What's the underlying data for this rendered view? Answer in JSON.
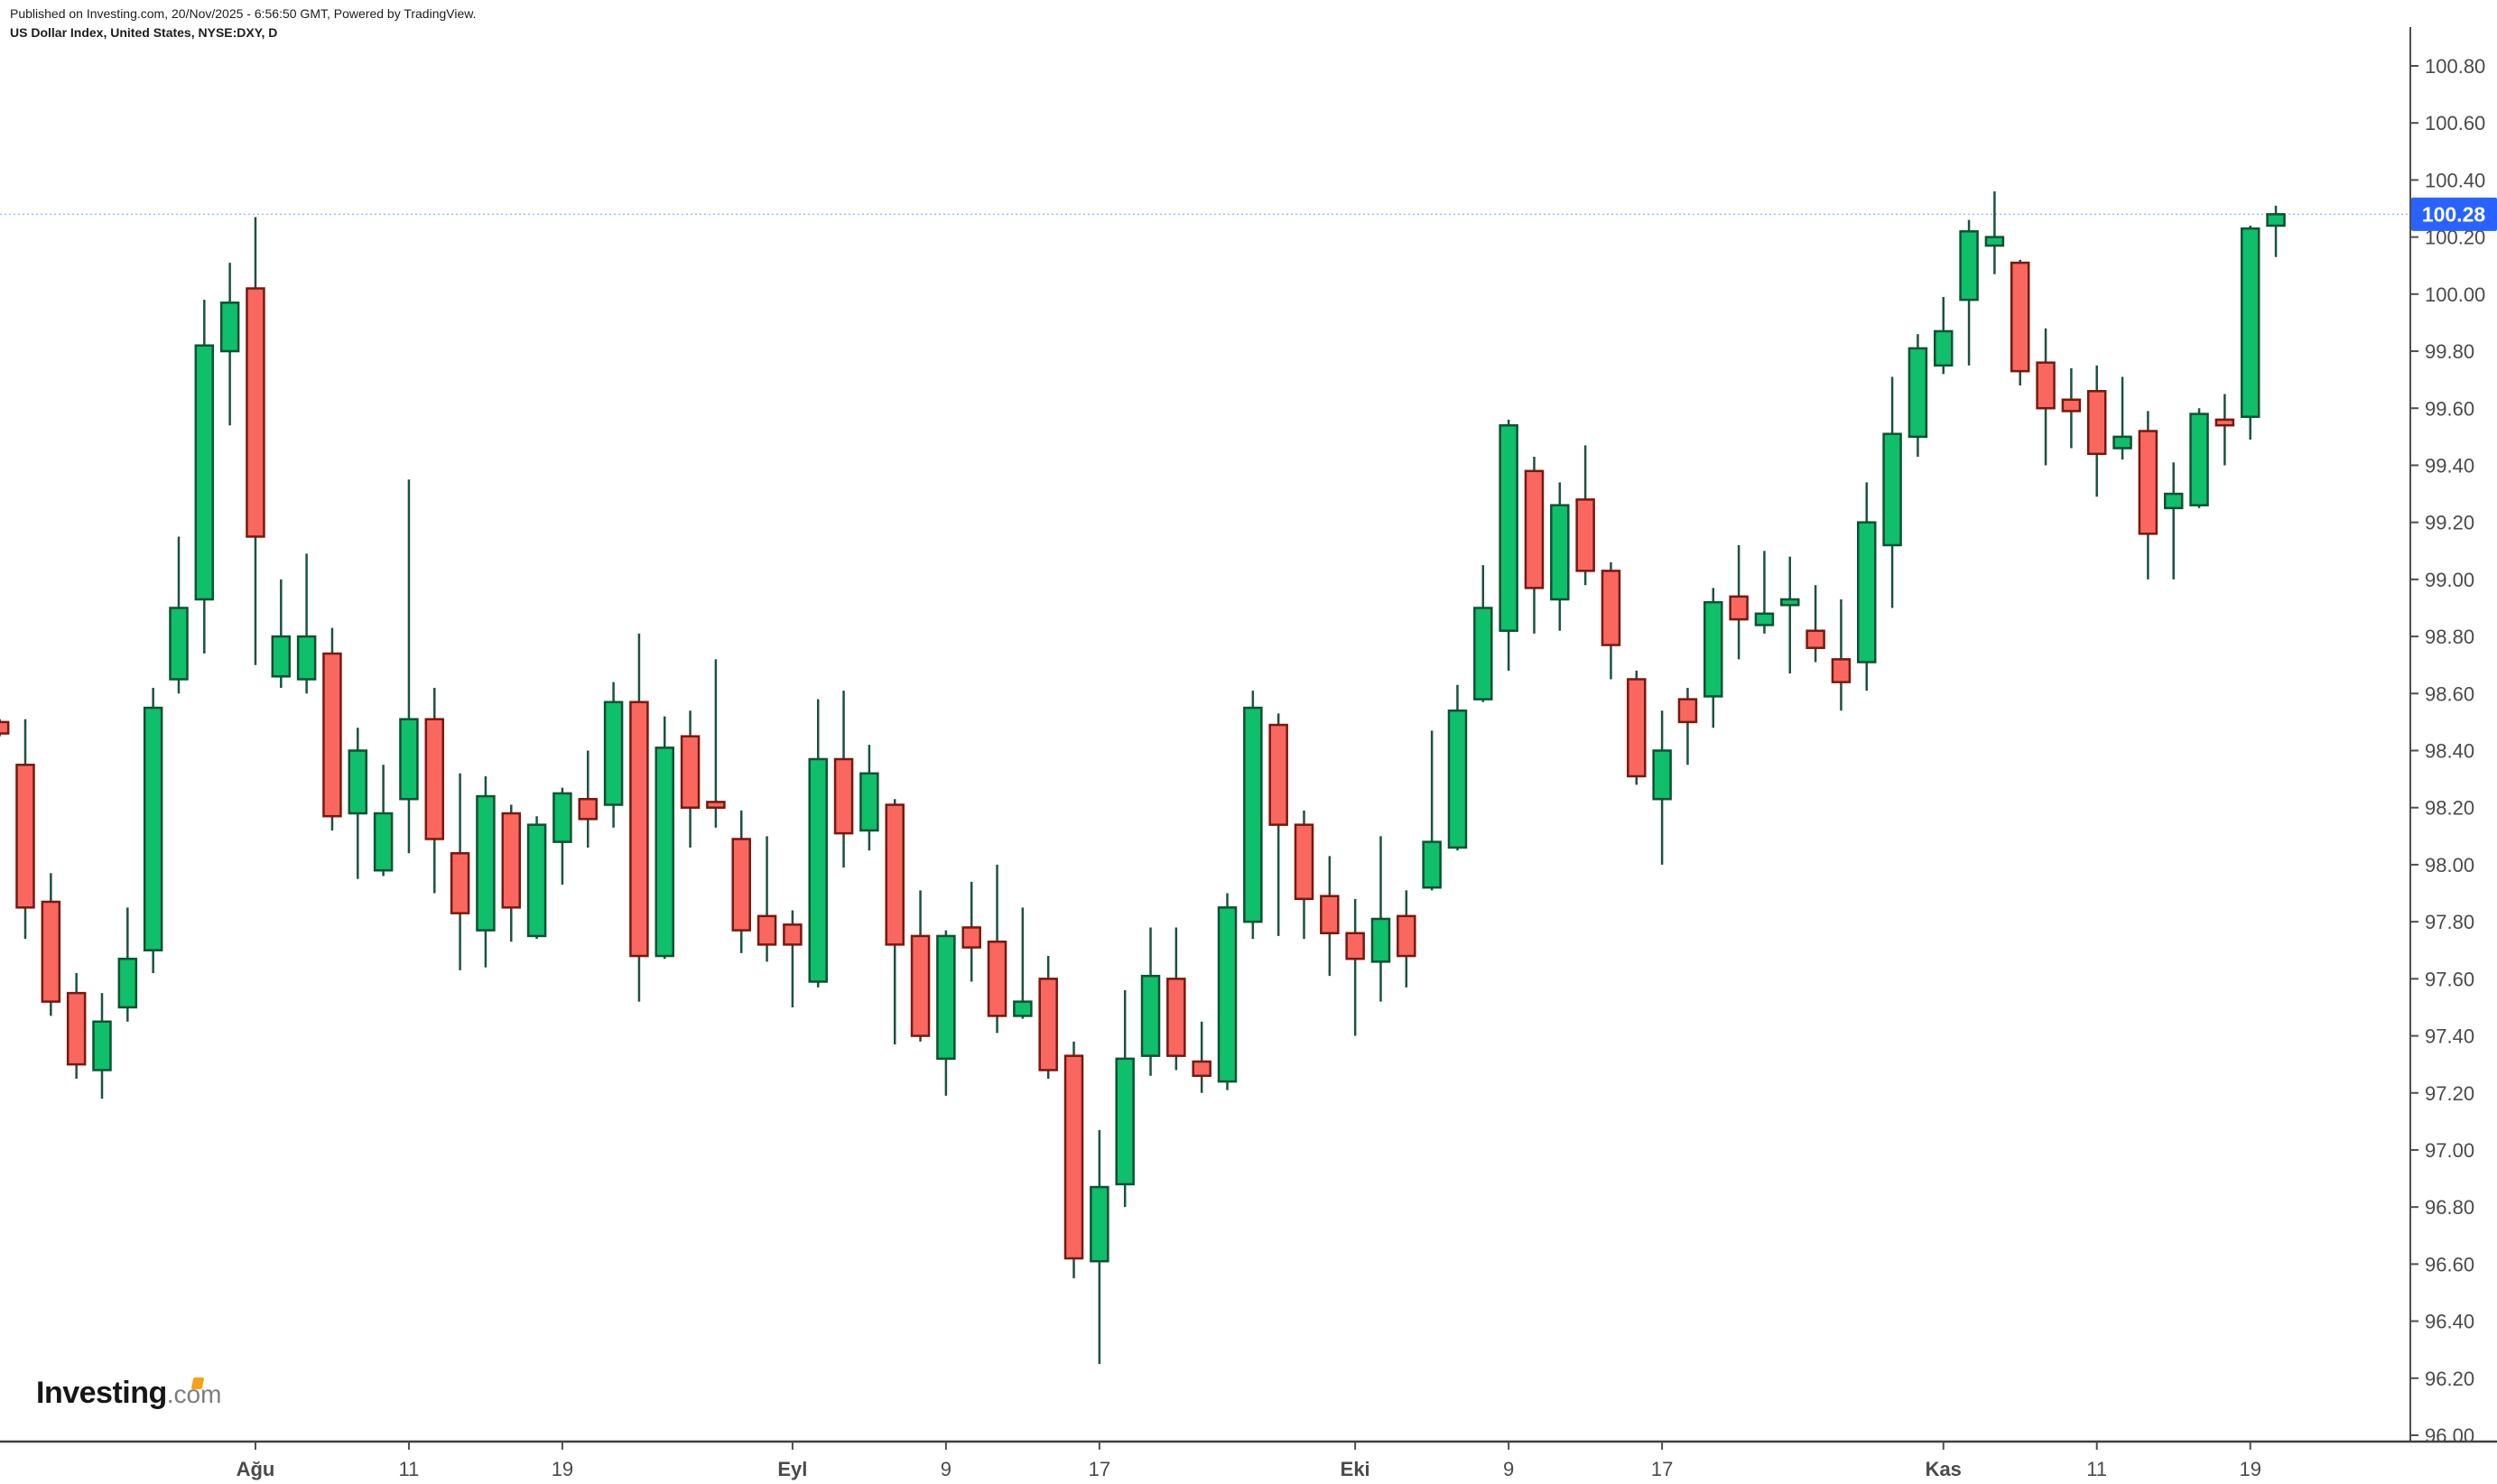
{
  "header": {
    "published_line": "Published on Investing.com, 20/Nov/2025 - 6:56:50 GMT, Powered by TradingView.",
    "instrument_line": "US Dollar Index, United States, NYSE:DXY, D"
  },
  "watermark": {
    "brand": "Investing",
    "suffix": ".com"
  },
  "price_label": {
    "value": "100.28"
  },
  "colors": {
    "up_fill": "#0fbf69",
    "up_border": "#0d5233",
    "down_fill": "#fa675f",
    "down_border": "#76190f",
    "wick": "#1d5140",
    "axis_line": "#4f4f4f",
    "axis_text": "#4a4a4a",
    "label_bg": "#2962ff",
    "label_text": "#ffffff",
    "dotted_line": "#9fb8f9",
    "logo_accent": "#f7a11a"
  },
  "chart_data": {
    "type": "candlestick",
    "title": "US Dollar Index, United States, NYSE:DXY, D",
    "ylim": [
      96.0,
      100.8
    ],
    "grid": false,
    "last_price": 100.28,
    "y_ticks": [
      "100.80",
      "100.60",
      "100.40",
      "100.20",
      "100.00",
      "99.80",
      "99.60",
      "99.40",
      "99.20",
      "99.00",
      "98.80",
      "98.60",
      "98.40",
      "98.20",
      "98.00",
      "97.80",
      "97.60",
      "97.40",
      "97.20",
      "97.00",
      "96.80",
      "96.60",
      "96.40",
      "96.20",
      "96.00"
    ],
    "x_ticks": [
      {
        "label": "Ağu",
        "index": 10,
        "bold": true
      },
      {
        "label": "11",
        "index": 16,
        "bold": false
      },
      {
        "label": "19",
        "index": 22,
        "bold": false
      },
      {
        "label": "Eyl",
        "index": 31,
        "bold": true
      },
      {
        "label": "9",
        "index": 37,
        "bold": false
      },
      {
        "label": "17",
        "index": 43,
        "bold": false
      },
      {
        "label": "Eki",
        "index": 53,
        "bold": true
      },
      {
        "label": "9",
        "index": 59,
        "bold": false
      },
      {
        "label": "17",
        "index": 65,
        "bold": false
      },
      {
        "label": "Kas",
        "index": 76,
        "bold": true
      },
      {
        "label": "11",
        "index": 82,
        "bold": false
      },
      {
        "label": "19",
        "index": 88,
        "bold": false
      }
    ],
    "plot": {
      "y_top": 73,
      "y_bottom": 1590,
      "x_start": -0.33,
      "x_step": 28.33,
      "axis_x": 2670,
      "axis_top_y": 30,
      "axis_bottom_y": 1597,
      "candle_width": 19,
      "border_w": 2.5,
      "wick_w": 2.5
    },
    "series": [
      {
        "date": "18 Jul",
        "o": 98.5,
        "h": 98.51,
        "l": 98.45,
        "c": 98.46
      },
      {
        "date": "21 Jul",
        "o": 98.35,
        "h": 98.51,
        "l": 97.74,
        "c": 97.85
      },
      {
        "date": "22 Jul",
        "o": 97.87,
        "h": 97.97,
        "l": 97.47,
        "c": 97.52
      },
      {
        "date": "23 Jul",
        "o": 97.55,
        "h": 97.62,
        "l": 97.25,
        "c": 97.3
      },
      {
        "date": "24 Jul",
        "o": 97.28,
        "h": 97.55,
        "l": 97.18,
        "c": 97.45
      },
      {
        "date": "25 Jul",
        "o": 97.5,
        "h": 97.85,
        "l": 97.45,
        "c": 97.67
      },
      {
        "date": "28 Jul",
        "o": 97.7,
        "h": 98.62,
        "l": 97.62,
        "c": 98.55
      },
      {
        "date": "29 Jul",
        "o": 98.65,
        "h": 99.15,
        "l": 98.6,
        "c": 98.9
      },
      {
        "date": "30 Jul",
        "o": 98.93,
        "h": 99.98,
        "l": 98.74,
        "c": 99.82
      },
      {
        "date": "31 Jul",
        "o": 99.8,
        "h": 100.11,
        "l": 99.54,
        "c": 99.97
      },
      {
        "date": "1 Ağu",
        "o": 100.02,
        "h": 100.27,
        "l": 98.7,
        "c": 99.15
      },
      {
        "date": "4 Ağu",
        "o": 98.66,
        "h": 99.0,
        "l": 98.62,
        "c": 98.8
      },
      {
        "date": "5 Ağu",
        "o": 98.65,
        "h": 99.09,
        "l": 98.6,
        "c": 98.8
      },
      {
        "date": "6 Ağu",
        "o": 98.74,
        "h": 98.83,
        "l": 98.12,
        "c": 98.17
      },
      {
        "date": "7 Ağu",
        "o": 98.18,
        "h": 98.48,
        "l": 97.95,
        "c": 98.4
      },
      {
        "date": "8 Ağu",
        "o": 97.98,
        "h": 98.35,
        "l": 97.96,
        "c": 98.18
      },
      {
        "date": "11 Ağu",
        "o": 98.23,
        "h": 99.35,
        "l": 98.04,
        "c": 98.51
      },
      {
        "date": "12 Ağu",
        "o": 98.51,
        "h": 98.62,
        "l": 97.9,
        "c": 98.09
      },
      {
        "date": "13 Ağu",
        "o": 98.04,
        "h": 98.32,
        "l": 97.63,
        "c": 97.83
      },
      {
        "date": "14 Ağu",
        "o": 97.77,
        "h": 98.31,
        "l": 97.64,
        "c": 98.24
      },
      {
        "date": "15 Ağu",
        "o": 98.18,
        "h": 98.21,
        "l": 97.73,
        "c": 97.85
      },
      {
        "date": "18 Ağu",
        "o": 97.75,
        "h": 98.17,
        "l": 97.74,
        "c": 98.14
      },
      {
        "date": "19 Ağu",
        "o": 98.08,
        "h": 98.27,
        "l": 97.93,
        "c": 98.25
      },
      {
        "date": "20 Ağu",
        "o": 98.23,
        "h": 98.4,
        "l": 98.06,
        "c": 98.16
      },
      {
        "date": "21 Ağu",
        "o": 98.21,
        "h": 98.64,
        "l": 98.13,
        "c": 98.57
      },
      {
        "date": "22 Ağu",
        "o": 98.57,
        "h": 98.81,
        "l": 97.52,
        "c": 97.68
      },
      {
        "date": "25 Ağu",
        "o": 97.68,
        "h": 98.52,
        "l": 97.67,
        "c": 98.41
      },
      {
        "date": "26 Ağu",
        "o": 98.45,
        "h": 98.54,
        "l": 98.06,
        "c": 98.2
      },
      {
        "date": "27 Ağu",
        "o": 98.22,
        "h": 98.72,
        "l": 98.13,
        "c": 98.2
      },
      {
        "date": "28 Ağu",
        "o": 98.09,
        "h": 98.19,
        "l": 97.69,
        "c": 97.77
      },
      {
        "date": "29 Ağu",
        "o": 97.82,
        "h": 98.1,
        "l": 97.66,
        "c": 97.72
      },
      {
        "date": "1 Eyl",
        "o": 97.79,
        "h": 97.84,
        "l": 97.5,
        "c": 97.72
      },
      {
        "date": "2 Eyl",
        "o": 97.59,
        "h": 98.58,
        "l": 97.57,
        "c": 98.37
      },
      {
        "date": "3 Eyl",
        "o": 98.37,
        "h": 98.61,
        "l": 97.99,
        "c": 98.11
      },
      {
        "date": "4 Eyl",
        "o": 98.12,
        "h": 98.42,
        "l": 98.05,
        "c": 98.32
      },
      {
        "date": "5 Eyl",
        "o": 98.21,
        "h": 98.23,
        "l": 97.37,
        "c": 97.72
      },
      {
        "date": "8 Eyl",
        "o": 97.75,
        "h": 97.91,
        "l": 97.38,
        "c": 97.4
      },
      {
        "date": "9 Eyl",
        "o": 97.32,
        "h": 97.77,
        "l": 97.19,
        "c": 97.75
      },
      {
        "date": "10 Eyl",
        "o": 97.78,
        "h": 97.94,
        "l": 97.59,
        "c": 97.71
      },
      {
        "date": "11 Eyl",
        "o": 97.73,
        "h": 98.0,
        "l": 97.41,
        "c": 97.47
      },
      {
        "date": "12 Eyl",
        "o": 97.47,
        "h": 97.85,
        "l": 97.46,
        "c": 97.52
      },
      {
        "date": "15 Eyl",
        "o": 97.6,
        "h": 97.68,
        "l": 97.25,
        "c": 97.28
      },
      {
        "date": "16 Eyl",
        "o": 97.33,
        "h": 97.38,
        "l": 96.55,
        "c": 96.62
      },
      {
        "date": "17 Eyl",
        "o": 96.61,
        "h": 97.07,
        "l": 96.25,
        "c": 96.87
      },
      {
        "date": "18 Eyl",
        "o": 96.88,
        "h": 97.56,
        "l": 96.8,
        "c": 97.32
      },
      {
        "date": "19 Eyl",
        "o": 97.33,
        "h": 97.78,
        "l": 97.26,
        "c": 97.61
      },
      {
        "date": "22 Eyl",
        "o": 97.6,
        "h": 97.78,
        "l": 97.28,
        "c": 97.33
      },
      {
        "date": "23 Eyl",
        "o": 97.31,
        "h": 97.45,
        "l": 97.2,
        "c": 97.26
      },
      {
        "date": "24 Eyl",
        "o": 97.24,
        "h": 97.9,
        "l": 97.21,
        "c": 97.85
      },
      {
        "date": "25 Eyl",
        "o": 97.8,
        "h": 98.61,
        "l": 97.74,
        "c": 98.55
      },
      {
        "date": "26 Eyl",
        "o": 98.49,
        "h": 98.53,
        "l": 97.75,
        "c": 98.14
      },
      {
        "date": "29 Eyl",
        "o": 98.14,
        "h": 98.19,
        "l": 97.74,
        "c": 97.88
      },
      {
        "date": "30 Eyl",
        "o": 97.89,
        "h": 98.03,
        "l": 97.61,
        "c": 97.76
      },
      {
        "date": "1 Eki",
        "o": 97.76,
        "h": 97.88,
        "l": 97.4,
        "c": 97.67
      },
      {
        "date": "2 Eki",
        "o": 97.66,
        "h": 98.1,
        "l": 97.52,
        "c": 97.81
      },
      {
        "date": "3 Eki",
        "o": 97.82,
        "h": 97.91,
        "l": 97.57,
        "c": 97.68
      },
      {
        "date": "6 Eki",
        "o": 97.92,
        "h": 98.47,
        "l": 97.91,
        "c": 98.08
      },
      {
        "date": "7 Eki",
        "o": 98.06,
        "h": 98.63,
        "l": 98.05,
        "c": 98.54
      },
      {
        "date": "8 Eki",
        "o": 98.58,
        "h": 99.05,
        "l": 98.57,
        "c": 98.9
      },
      {
        "date": "9 Eki",
        "o": 98.82,
        "h": 99.56,
        "l": 98.68,
        "c": 99.54
      },
      {
        "date": "10 Eki",
        "o": 99.38,
        "h": 99.43,
        "l": 98.81,
        "c": 98.97
      },
      {
        "date": "13 Eki",
        "o": 98.93,
        "h": 99.34,
        "l": 98.82,
        "c": 99.26
      },
      {
        "date": "14 Eki",
        "o": 99.28,
        "h": 99.47,
        "l": 98.98,
        "c": 99.03
      },
      {
        "date": "15 Eki",
        "o": 99.03,
        "h": 99.06,
        "l": 98.65,
        "c": 98.77
      },
      {
        "date": "16 Eki",
        "o": 98.65,
        "h": 98.68,
        "l": 98.28,
        "c": 98.31
      },
      {
        "date": "17 Eki",
        "o": 98.23,
        "h": 98.54,
        "l": 98.0,
        "c": 98.4
      },
      {
        "date": "20 Eki",
        "o": 98.58,
        "h": 98.62,
        "l": 98.35,
        "c": 98.5
      },
      {
        "date": "21 Eki",
        "o": 98.59,
        "h": 98.97,
        "l": 98.48,
        "c": 98.92
      },
      {
        "date": "22 Eki",
        "o": 98.94,
        "h": 99.12,
        "l": 98.72,
        "c": 98.86
      },
      {
        "date": "23 Eki",
        "o": 98.84,
        "h": 99.1,
        "l": 98.81,
        "c": 98.88
      },
      {
        "date": "24 Eki",
        "o": 98.91,
        "h": 99.08,
        "l": 98.67,
        "c": 98.93
      },
      {
        "date": "27 Eki",
        "o": 98.82,
        "h": 98.98,
        "l": 98.71,
        "c": 98.76
      },
      {
        "date": "28 Eki",
        "o": 98.72,
        "h": 98.93,
        "l": 98.54,
        "c": 98.64
      },
      {
        "date": "29 Eki",
        "o": 98.71,
        "h": 99.34,
        "l": 98.61,
        "c": 99.2
      },
      {
        "date": "30 Eki",
        "o": 99.12,
        "h": 99.71,
        "l": 98.9,
        "c": 99.51
      },
      {
        "date": "31 Eki",
        "o": 99.5,
        "h": 99.86,
        "l": 99.43,
        "c": 99.81
      },
      {
        "date": "3 Kas",
        "o": 99.75,
        "h": 99.99,
        "l": 99.72,
        "c": 99.87
      },
      {
        "date": "4 Kas",
        "o": 99.98,
        "h": 100.26,
        "l": 99.75,
        "c": 100.22
      },
      {
        "date": "5 Kas",
        "o": 100.17,
        "h": 100.36,
        "l": 100.07,
        "c": 100.2
      },
      {
        "date": "6 Kas",
        "o": 100.11,
        "h": 100.12,
        "l": 99.68,
        "c": 99.73
      },
      {
        "date": "7 Kas",
        "o": 99.76,
        "h": 99.88,
        "l": 99.4,
        "c": 99.6
      },
      {
        "date": "10 Kas",
        "o": 99.63,
        "h": 99.74,
        "l": 99.46,
        "c": 99.59
      },
      {
        "date": "11 Kas",
        "o": 99.66,
        "h": 99.75,
        "l": 99.29,
        "c": 99.44
      },
      {
        "date": "12 Kas",
        "o": 99.46,
        "h": 99.71,
        "l": 99.42,
        "c": 99.5
      },
      {
        "date": "13 Kas",
        "o": 99.52,
        "h": 99.59,
        "l": 99.0,
        "c": 99.16
      },
      {
        "date": "14 Kas",
        "o": 99.25,
        "h": 99.41,
        "l": 99.0,
        "c": 99.3
      },
      {
        "date": "17 Kas",
        "o": 99.26,
        "h": 99.6,
        "l": 99.25,
        "c": 99.58
      },
      {
        "date": "18 Kas",
        "o": 99.56,
        "h": 99.65,
        "l": 99.4,
        "c": 99.54
      },
      {
        "date": "19 Kas",
        "o": 99.57,
        "h": 100.24,
        "l": 99.49,
        "c": 100.23
      },
      {
        "date": "20 Kas",
        "o": 100.24,
        "h": 100.31,
        "l": 100.13,
        "c": 100.28
      }
    ]
  }
}
